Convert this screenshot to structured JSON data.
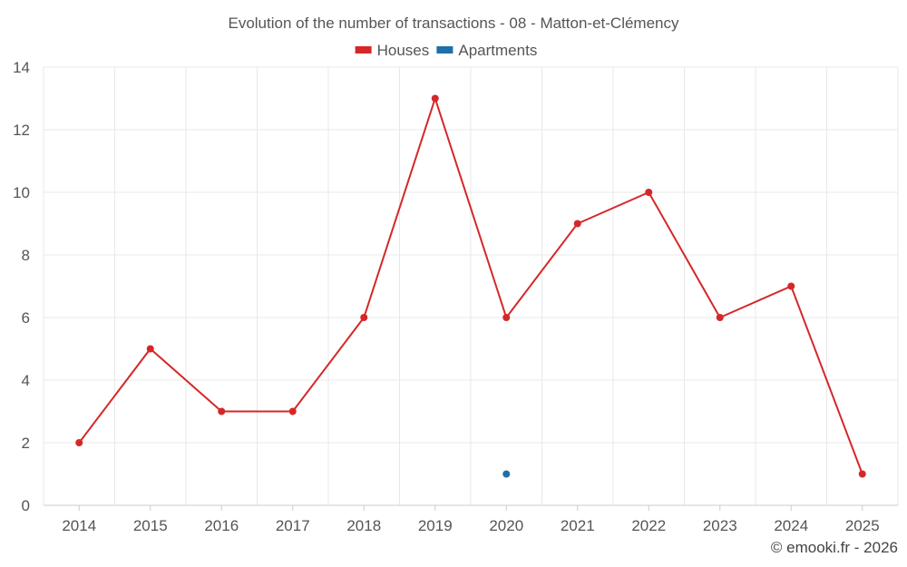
{
  "chart_data": {
    "type": "line",
    "title": "Evolution of the number of transactions - 08 - Matton-et-Clémency",
    "categories": [
      "2014",
      "2015",
      "2016",
      "2017",
      "2018",
      "2019",
      "2020",
      "2021",
      "2022",
      "2023",
      "2024",
      "2025"
    ],
    "series": [
      {
        "name": "Houses",
        "color": "#d62728",
        "values": [
          2,
          5,
          3,
          3,
          6,
          13,
          6,
          9,
          10,
          6,
          7,
          1
        ]
      },
      {
        "name": "Apartments",
        "color": "#1f6fa8",
        "values": [
          null,
          null,
          null,
          null,
          null,
          null,
          1,
          null,
          null,
          null,
          null,
          null
        ]
      }
    ],
    "ylim": [
      0,
      14
    ],
    "yticks": [
      0,
      2,
      4,
      6,
      8,
      10,
      12,
      14
    ],
    "grid": true,
    "legend_position": "top-center",
    "xlabel": "",
    "ylabel": ""
  },
  "credit": "© emooki.fr - 2026"
}
